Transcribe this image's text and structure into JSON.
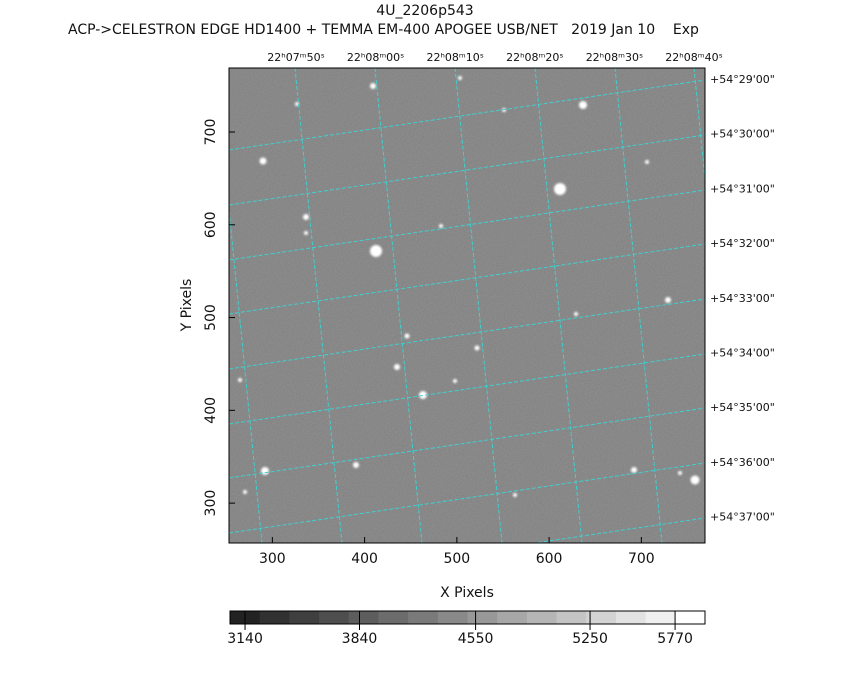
{
  "chart_data": {
    "type": "image",
    "title": "4U_2206p543",
    "subtitle": "ACP->CELESTRON EDGE HD1400 + TEMMA EM-400 APOGEE USB/NET   2019 Jan 10    Exp",
    "x_label": "X Pixels",
    "y_label": "Y Pixels",
    "xlim": [
      253,
      769
    ],
    "xticks": [
      300,
      400,
      500,
      600,
      700
    ],
    "ylim": [
      257,
      769
    ],
    "yticks": [
      300,
      400,
      500,
      600,
      700
    ],
    "ra_labels": [
      "22ʰ07ᵐ50ˢ",
      "22ʰ08ᵐ00ˢ",
      "22ʰ08ᵐ10ˢ",
      "22ʰ08ᵐ20ˢ",
      "22ʰ08ᵐ30ˢ",
      "22ʰ08ᵐ40ˢ"
    ],
    "dec_labels": [
      "+54°29'00\"",
      "+54°30'00\"",
      "+54°31'00\"",
      "+54°32'00\"",
      "+54°33'00\"",
      "+54°34'00\"",
      "+54°35'00\"",
      "+54°36'00\"",
      "+54°37'00\""
    ],
    "clim": [
      3048,
      5953
    ],
    "cticks": [
      3140,
      3840,
      4550,
      5250,
      5770
    ]
  }
}
